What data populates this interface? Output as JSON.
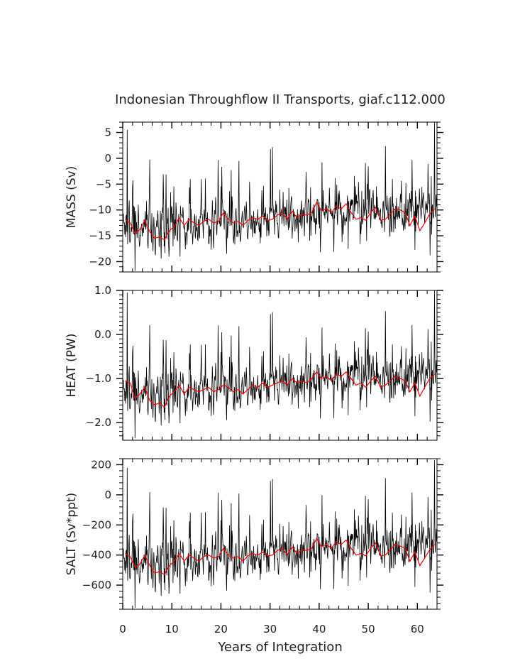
{
  "chart_data": {
    "title": "Indonesian Throughflow II Transports, giaf.c112.000",
    "xlabel": "Years of Integration",
    "xlim": [
      0,
      64
    ],
    "xticks": [
      0,
      10,
      20,
      30,
      40,
      50,
      60
    ],
    "xtick_labels": [
      "0",
      "10",
      "20",
      "30",
      "40",
      "50",
      "60"
    ],
    "x_minor_step": 2,
    "samples_per_year": 12,
    "colors": {
      "monthly": "#000000",
      "annual_mean": "#ff0000",
      "frame": "#000000"
    },
    "panels": [
      {
        "type": "line",
        "ylabel": "MASS (Sv)",
        "ylim": [
          -22,
          7
        ],
        "yticks": [
          5,
          0,
          -5,
          -10,
          -15,
          -20
        ],
        "ytick_labels": [
          "5",
          "0",
          "−5",
          "−10",
          "−15",
          "−20"
        ],
        "y_minor_step": 1,
        "series": [
          {
            "name": "monthly",
            "base": -13.0,
            "amplitude": 3.2,
            "trend": 0.045
          },
          {
            "name": "annual mean",
            "values": [
              -11.8,
              -12.5,
              -14.5,
              -13.8,
              -12.0,
              -14.2,
              -15.5,
              -15.2,
              -15.8,
              -14.0,
              -13.2,
              -11.5,
              -13.0,
              -11.8,
              -12.5,
              -13.0,
              -12.2,
              -11.8,
              -12.5,
              -12.2,
              -10.5,
              -11.8,
              -12.5,
              -12.2,
              -13.0,
              -12.0,
              -11.5,
              -11.8,
              -11.2,
              -12.0,
              -11.8,
              -11.0,
              -10.5,
              -11.8,
              -10.2,
              -11.5,
              -10.8,
              -11.0,
              -10.5,
              -8.5,
              -10.2,
              -9.8,
              -10.5,
              -9.2,
              -9.8,
              -8.8,
              -10.5,
              -11.8,
              -11.5,
              -12.0,
              -10.5,
              -9.5,
              -12.0,
              -11.8,
              -10.8,
              -9.8,
              -10.0,
              -10.5,
              -13.0,
              -11.2,
              -14.0,
              -12.5,
              -10.8,
              -9.8
            ]
          }
        ],
        "extremes": [
          {
            "year": 0.9,
            "value": 5.5
          },
          {
            "year": 2.5,
            "value": -21.8
          },
          {
            "year": 63.5,
            "value": 7.0
          }
        ]
      },
      {
        "type": "line",
        "ylabel": "HEAT (PW)",
        "ylim": [
          -2.4,
          1.0
        ],
        "yticks": [
          1.0,
          0.0,
          -1.0,
          -2.0
        ],
        "ytick_labels": [
          "1.0",
          "0.0",
          "−1.0",
          "−2.0"
        ],
        "y_minor_step": 0.1,
        "series": [
          {
            "name": "monthly",
            "base": -1.3,
            "amplitude": 0.38,
            "trend": 0.0055
          },
          {
            "name": "annual mean",
            "values": [
              -1.05,
              -1.1,
              -1.45,
              -1.35,
              -1.2,
              -1.5,
              -1.6,
              -1.55,
              -1.65,
              -1.4,
              -1.3,
              -1.15,
              -1.35,
              -1.2,
              -1.25,
              -1.3,
              -1.25,
              -1.2,
              -1.3,
              -1.25,
              -1.15,
              -1.2,
              -1.3,
              -1.25,
              -1.35,
              -1.25,
              -1.15,
              -1.2,
              -1.1,
              -1.2,
              -1.15,
              -1.1,
              -1.05,
              -1.15,
              -1.0,
              -1.1,
              -1.05,
              -1.1,
              -1.0,
              -0.85,
              -1.0,
              -0.95,
              -1.05,
              -0.9,
              -0.95,
              -0.85,
              -1.0,
              -1.15,
              -1.1,
              -1.2,
              -1.05,
              -0.95,
              -1.2,
              -1.15,
              -1.05,
              -0.95,
              -1.0,
              -1.05,
              -1.3,
              -1.1,
              -1.4,
              -1.2,
              -1.0,
              -0.9
            ]
          }
        ],
        "extremes": [
          {
            "year": 0.9,
            "value": 0.95
          },
          {
            "year": 2.5,
            "value": -2.35
          },
          {
            "year": 63.5,
            "value": 1.0
          }
        ]
      },
      {
        "type": "line",
        "ylabel": "SALT (Sv*ppt)",
        "ylim": [
          -760,
          240
        ],
        "yticks": [
          200,
          0,
          -200,
          -400,
          -600
        ],
        "ytick_labels": [
          "200",
          "0",
          "−200",
          "−400",
          "−600"
        ],
        "y_minor_step": 40,
        "series": [
          {
            "name": "monthly",
            "base": -440,
            "amplitude": 115,
            "trend": 1.6
          },
          {
            "name": "annual mean",
            "values": [
              -390,
              -410,
              -480,
              -460,
              -400,
              -470,
              -520,
              -510,
              -530,
              -470,
              -440,
              -390,
              -440,
              -400,
              -420,
              -440,
              -410,
              -400,
              -420,
              -410,
              -355,
              -400,
              -420,
              -410,
              -440,
              -405,
              -390,
              -400,
              -380,
              -405,
              -400,
              -370,
              -355,
              -400,
              -345,
              -390,
              -365,
              -370,
              -355,
              -290,
              -345,
              -330,
              -355,
              -310,
              -330,
              -300,
              -355,
              -400,
              -390,
              -405,
              -355,
              -320,
              -405,
              -400,
              -365,
              -330,
              -340,
              -355,
              -440,
              -380,
              -470,
              -420,
              -365,
              -330
            ]
          }
        ],
        "extremes": [
          {
            "year": 0.9,
            "value": 180
          },
          {
            "year": 2.5,
            "value": -750
          },
          {
            "year": 63.5,
            "value": 230
          }
        ]
      }
    ]
  }
}
